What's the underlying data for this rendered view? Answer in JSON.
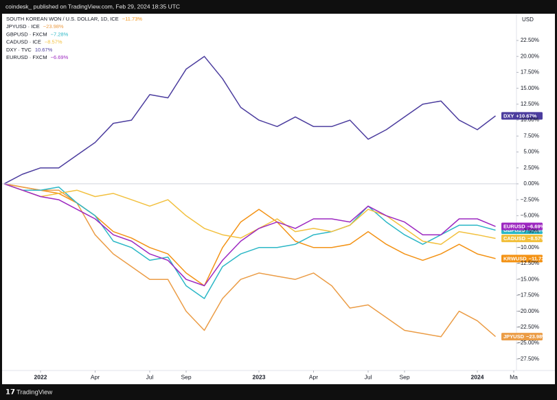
{
  "header": "coindesk_ published on TradingView.com, Feb 29, 2024 18:35 UTC",
  "footer": "TradingView",
  "chart_data": {
    "type": "line",
    "currency": "USD",
    "x": [
      "2021-11",
      "2021-12",
      "2022-01",
      "2022-02",
      "2022-03",
      "2022-04",
      "2022-05",
      "2022-06",
      "2022-07",
      "2022-08",
      "2022-09",
      "2022-10",
      "2022-11",
      "2022-12",
      "2023-01",
      "2023-02",
      "2023-03",
      "2023-04",
      "2023-05",
      "2023-06",
      "2023-07",
      "2023-08",
      "2023-09",
      "2023-10",
      "2023-11",
      "2023-12",
      "2024-01",
      "2024-02"
    ],
    "xlim": [
      "2021-11",
      "2024-03"
    ],
    "xticks": [
      {
        "value": "2022-01",
        "label": "2022"
      },
      {
        "value": "2022-04",
        "label": "Apr"
      },
      {
        "value": "2022-07",
        "label": "Jul"
      },
      {
        "value": "2022-09",
        "label": "Sep"
      },
      {
        "value": "2023-01",
        "label": "2023"
      },
      {
        "value": "2023-04",
        "label": "Apr"
      },
      {
        "value": "2023-07",
        "label": "Jul"
      },
      {
        "value": "2023-09",
        "label": "Sep"
      },
      {
        "value": "2024-01",
        "label": "2024"
      },
      {
        "value": "2024-03",
        "label": "Ma"
      }
    ],
    "ylim": [
      -29.3,
      26.7
    ],
    "yticks": [
      {
        "value": 22.5,
        "label": "22.50%"
      },
      {
        "value": 20,
        "label": "20.00%"
      },
      {
        "value": 17.5,
        "label": "17.50%"
      },
      {
        "value": 15,
        "label": "15.00%"
      },
      {
        "value": 12.5,
        "label": "12.50%"
      },
      {
        "value": 10,
        "label": "10.00%"
      },
      {
        "value": 7.5,
        "label": "7.50%"
      },
      {
        "value": 5,
        "label": "5.00%"
      },
      {
        "value": 2.5,
        "label": "2.50%"
      },
      {
        "value": 0,
        "label": "0.00%"
      },
      {
        "value": -2.5,
        "label": "−2.50%"
      },
      {
        "value": -5,
        "label": "−5.00%"
      },
      {
        "value": -7.5,
        "label": "−7.50%"
      },
      {
        "value": -10,
        "label": "−10.00%"
      },
      {
        "value": -12.5,
        "label": "−12.50%"
      },
      {
        "value": -15,
        "label": "−15.00%"
      },
      {
        "value": -17.5,
        "label": "−17.50%"
      },
      {
        "value": -20,
        "label": "−20.00%"
      },
      {
        "value": -22.5,
        "label": "−22.50%"
      },
      {
        "value": -25,
        "label": "−25.00%"
      },
      {
        "value": -27.5,
        "label": "−27.50%"
      }
    ],
    "series": [
      {
        "name": "SOUTH KOREAN WON / U.S. DOLLAR, 1D, ICE",
        "tag": "KRWUSD",
        "change": "−11.73%",
        "color": "#f39214",
        "values": [
          0,
          -0.5,
          -1,
          -1.5,
          -3,
          -5,
          -7.5,
          -8.5,
          -10,
          -11,
          -14,
          -16,
          -10,
          -6,
          -4,
          -6,
          -9,
          -10,
          -10,
          -9.5,
          -7.5,
          -9.5,
          -11,
          -12,
          -11,
          -9.5,
          -11,
          -11.73
        ],
        "value_labels": [
          null,
          null,
          null,
          null,
          null,
          null,
          null,
          null,
          null,
          null,
          null,
          null,
          null,
          null,
          null,
          null,
          null,
          null,
          null,
          null,
          null,
          null,
          null,
          null,
          null,
          null,
          null,
          "−11.73%"
        ]
      },
      {
        "name": "JPYUSD · ICE",
        "tag": "JPYUSD",
        "change": "−23.98%",
        "color": "#eb9c45",
        "values": [
          0,
          -0.5,
          -1,
          -1,
          -3,
          -8,
          -11,
          -13,
          -15,
          -15,
          -20,
          -23,
          -18,
          -15,
          -14,
          -14.5,
          -15,
          -14,
          -16,
          -19.5,
          -19,
          -21,
          -23,
          -23.5,
          -24,
          -20,
          -21.5,
          -23.98
        ],
        "value_labels": [
          null,
          null,
          null,
          null,
          null,
          null,
          null,
          null,
          null,
          null,
          null,
          null,
          null,
          null,
          null,
          null,
          null,
          null,
          null,
          null,
          null,
          null,
          null,
          null,
          null,
          null,
          null,
          "−23.98%"
        ]
      },
      {
        "name": "GBPUSD · FXCM",
        "tag": "GBPUSD",
        "change": "−7.28%",
        "color": "#2bb7c6",
        "values": [
          0,
          -1,
          -1,
          -0.5,
          -3,
          -5,
          -9,
          -10,
          -12,
          -11.5,
          -16,
          -18,
          -13,
          -11,
          -10,
          -10,
          -9.5,
          -8,
          -7.5,
          -6.5,
          -3.5,
          -6,
          -8,
          -9.5,
          -8,
          -6.5,
          -6.5,
          -7.28
        ],
        "value_labels": [
          null,
          null,
          null,
          null,
          null,
          null,
          null,
          null,
          null,
          null,
          null,
          null,
          null,
          null,
          null,
          null,
          null,
          null,
          null,
          null,
          null,
          null,
          null,
          null,
          null,
          null,
          null,
          "−7.28%"
        ]
      },
      {
        "name": "CADUSD · ICE",
        "tag": "CADUSD",
        "change": "−8.57%",
        "color": "#f2c03e",
        "values": [
          0,
          -1,
          -2,
          -1.5,
          -1,
          -2,
          -1.5,
          -2.5,
          -3.5,
          -2.5,
          -5,
          -7,
          -8,
          -8.5,
          -7,
          -5.5,
          -7.5,
          -7,
          -7.5,
          -6.5,
          -4,
          -5,
          -7,
          -9,
          -9.5,
          -7.5,
          -8,
          -8.57
        ],
        "value_labels": [
          null,
          null,
          null,
          null,
          null,
          null,
          null,
          null,
          null,
          null,
          null,
          null,
          null,
          null,
          null,
          null,
          null,
          null,
          null,
          null,
          null,
          null,
          null,
          null,
          null,
          null,
          null,
          "−8.57%"
        ]
      },
      {
        "name": "DXY · TVC",
        "tag": "DXY",
        "change": "10.67%",
        "color": "#4b3c9e",
        "values": [
          0,
          1.5,
          2.5,
          2.5,
          4.5,
          6.5,
          9.5,
          10,
          14,
          13.5,
          18,
          20,
          16.5,
          12,
          10,
          9,
          10.5,
          9,
          9,
          10,
          7,
          8.5,
          10.5,
          12.5,
          13,
          10,
          8.5,
          10.67
        ],
        "value_labels": [
          null,
          null,
          null,
          null,
          null,
          null,
          null,
          null,
          null,
          null,
          null,
          null,
          null,
          null,
          null,
          null,
          null,
          null,
          null,
          null,
          null,
          null,
          null,
          null,
          null,
          null,
          null,
          "+10.67%"
        ]
      },
      {
        "name": "EURUSD · FXCM",
        "tag": "EURUSD",
        "change": "−6.69%",
        "color": "#9c27c0",
        "values": [
          0,
          -1,
          -2,
          -2.5,
          -4,
          -5.5,
          -8,
          -9,
          -11,
          -12,
          -15,
          -16,
          -12,
          -9,
          -7,
          -6,
          -7,
          -5.5,
          -5.5,
          -6,
          -3.5,
          -5,
          -6,
          -8,
          -8,
          -5.5,
          -5.5,
          -6.69
        ],
        "value_labels": [
          null,
          null,
          null,
          null,
          null,
          null,
          null,
          null,
          null,
          null,
          null,
          null,
          null,
          null,
          null,
          null,
          null,
          null,
          null,
          null,
          null,
          null,
          null,
          null,
          null,
          null,
          null,
          "−6.69%"
        ]
      }
    ]
  }
}
